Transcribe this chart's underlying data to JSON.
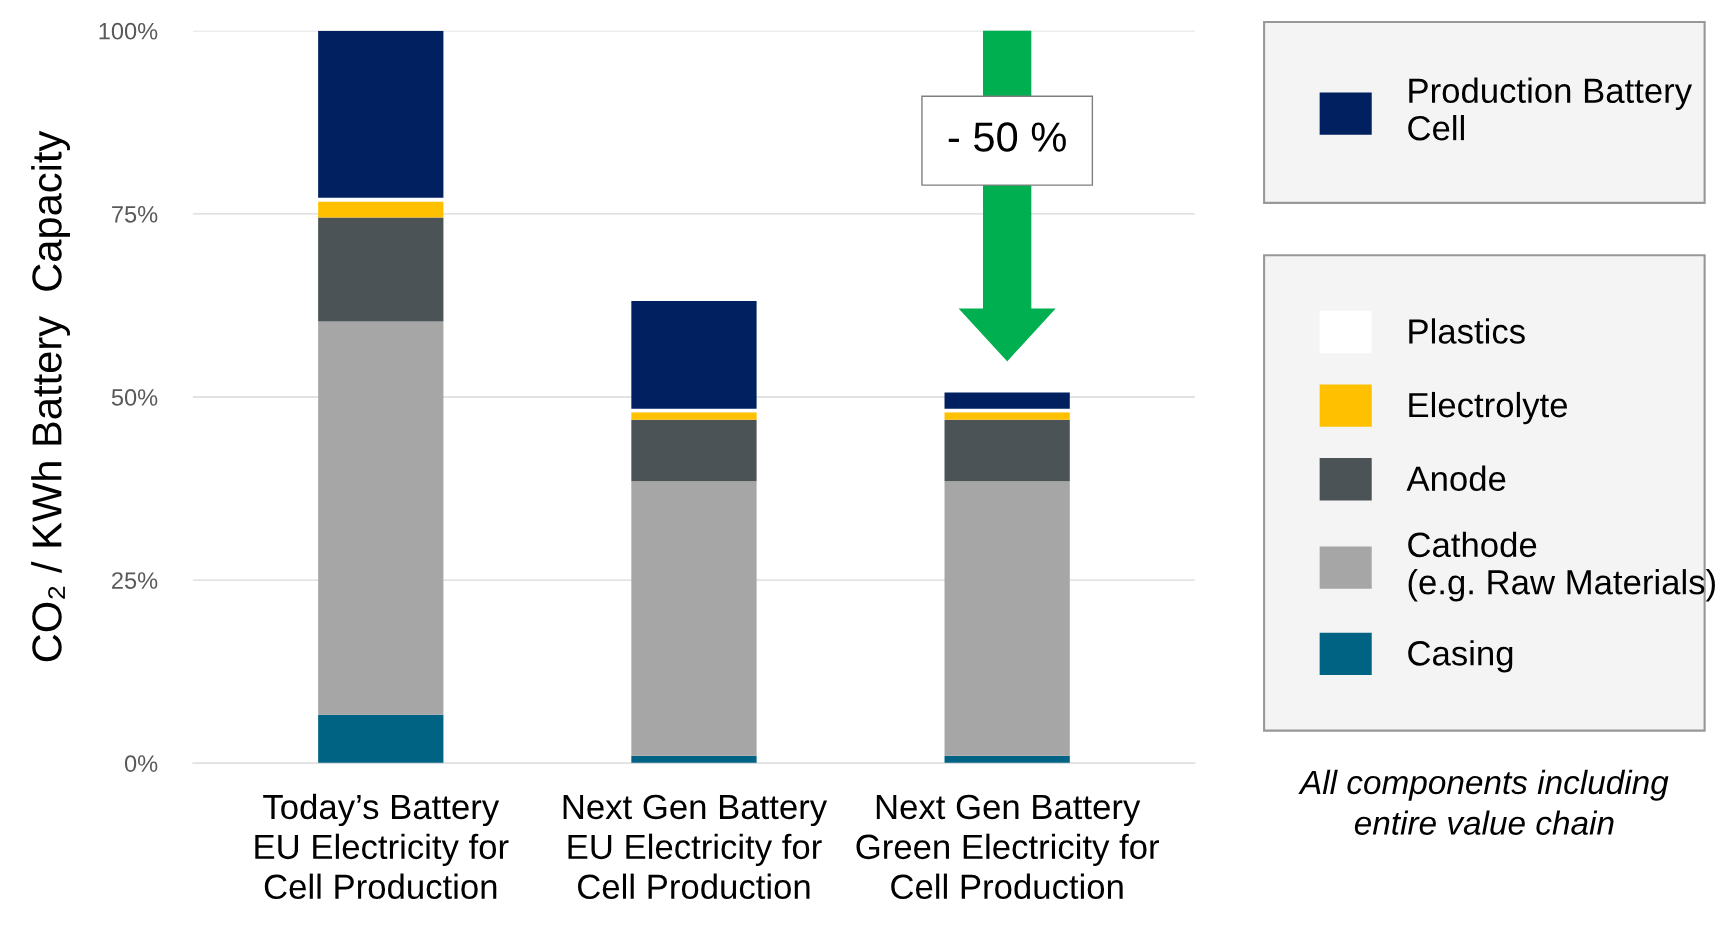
{
  "chart_data": {
    "type": "bar",
    "stacked": true,
    "categories": [
      "Today’s Battery\nEU Electricity for\nCell Production",
      "Next Gen Battery\nEU Electricity for\nCell Production",
      "Next Gen Battery\nGreen Electricity for\nCell Production"
    ],
    "ylabel": "CO₂ / KWh Battery  Capacity",
    "series": [
      {
        "name": "Casing",
        "color": "#006384",
        "values": [
          6.6,
          1.0,
          1.0
        ]
      },
      {
        "name": "Cathode\n(e.g. Raw Materials)",
        "color": "#a6a6a6",
        "values": [
          53.7,
          37.5,
          37.5
        ]
      },
      {
        "name": "Anode",
        "color": "#4b5356",
        "values": [
          14.2,
          8.4,
          8.4
        ]
      },
      {
        "name": "Electrolyte",
        "color": "#ffc000",
        "values": [
          2.2,
          1.0,
          1.0
        ]
      },
      {
        "name": "Plastics",
        "color": "#ffffff",
        "values": [
          0.5,
          0.5,
          0.5
        ]
      },
      {
        "name": "Production Battery\nCell",
        "color": "#002060",
        "values": [
          22.8,
          14.7,
          2.2
        ]
      }
    ],
    "ylim": [
      0,
      100
    ],
    "yticks": [
      {
        "value": 0,
        "label": "0%"
      },
      {
        "value": 25,
        "label": "25%"
      },
      {
        "value": 50,
        "label": "50%"
      },
      {
        "value": 75,
        "label": "75%"
      },
      {
        "value": 100,
        "label": "100%"
      }
    ],
    "grid": "y",
    "legend": "right",
    "annotations": [
      "- 50 %",
      "All components including\nentire value chain"
    ]
  }
}
